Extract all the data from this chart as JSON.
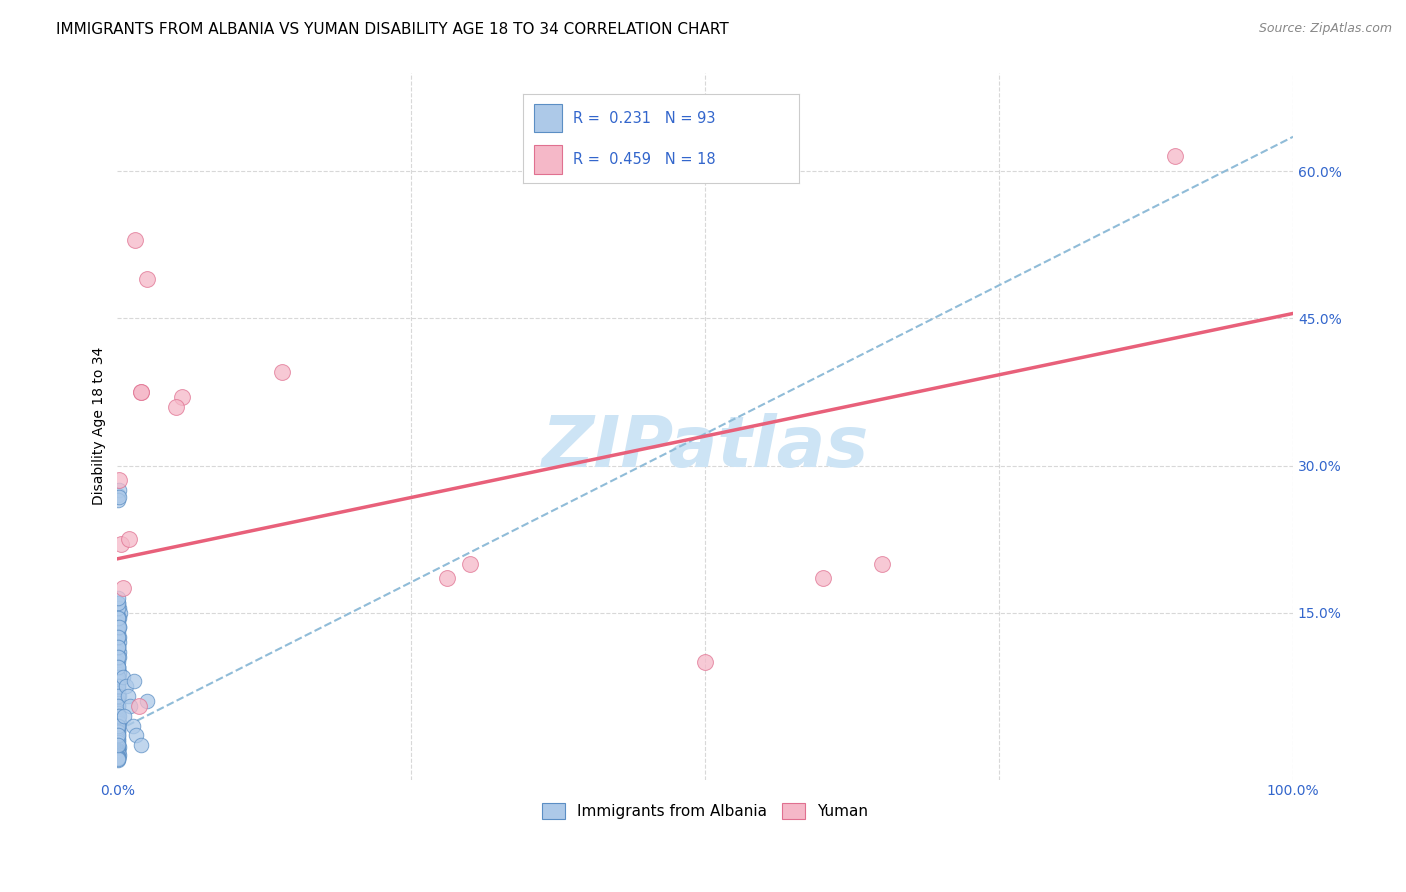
{
  "title": "IMMIGRANTS FROM ALBANIA VS YUMAN DISABILITY AGE 18 TO 34 CORRELATION CHART",
  "source": "Source: ZipAtlas.com",
  "ylabel": "Disability Age 18 to 34",
  "ytick_values": [
    0.15,
    0.3,
    0.45,
    0.6
  ],
  "xmin": 0.0,
  "xmax": 1.0,
  "ymin": -0.02,
  "ymax": 0.7,
  "watermark": "ZIPatlas",
  "blue_color": "#adc9e8",
  "blue_edge": "#5b8ec4",
  "pink_color": "#f5b8c8",
  "pink_edge": "#e07090",
  "trendline_blue_color": "#90bcd8",
  "trendline_pink_color": "#e8607a",
  "blue_scatter_x": [
    0.0008,
    0.0012,
    0.0006,
    0.0015,
    0.001,
    0.0008,
    0.002,
    0.0015,
    0.0007,
    0.001,
    0.0008,
    0.001,
    0.0012,
    0.0006,
    0.001,
    0.0007,
    0.0009,
    0.0006,
    0.0012,
    0.001,
    0.0007,
    0.0006,
    0.0009,
    0.0006,
    0.0009,
    0.0007,
    0.0012,
    0.0006,
    0.0009,
    0.0006,
    0.0006,
    0.0009,
    0.0006,
    0.0008,
    0.0006,
    0.0012,
    0.0006,
    0.0008,
    0.0006,
    0.0006,
    0.0008,
    0.0006,
    0.0006,
    0.0008,
    0.0006,
    0.0012,
    0.0009,
    0.0006,
    0.0006,
    0.0008,
    0.0006,
    0.0008,
    0.0012,
    0.0006,
    0.0006,
    0.0008,
    0.0006,
    0.0006,
    0.0008,
    0.0006,
    0.0006,
    0.0008,
    0.0006,
    0.0006,
    0.0012,
    0.0006,
    0.0008,
    0.0006,
    0.0006,
    0.0008,
    0.0015,
    0.0008,
    0.0006,
    0.0008,
    0.0005,
    0.0005,
    0.0007,
    0.0005,
    0.0012,
    0.0005,
    0.0008,
    0.0005,
    0.0005,
    0.005,
    0.007,
    0.009,
    0.011,
    0.006,
    0.013,
    0.016,
    0.02,
    0.014,
    0.025
  ],
  "blue_scatter_y": [
    0.27,
    0.275,
    0.265,
    0.268,
    0.155,
    0.16,
    0.15,
    0.145,
    0.14,
    0.135,
    0.13,
    0.125,
    0.12,
    0.115,
    0.11,
    0.105,
    0.1,
    0.095,
    0.09,
    0.088,
    0.085,
    0.082,
    0.08,
    0.075,
    0.072,
    0.068,
    0.065,
    0.06,
    0.058,
    0.055,
    0.05,
    0.048,
    0.045,
    0.042,
    0.04,
    0.038,
    0.035,
    0.032,
    0.03,
    0.028,
    0.025,
    0.022,
    0.02,
    0.018,
    0.015,
    0.013,
    0.012,
    0.01,
    0.009,
    0.008,
    0.007,
    0.006,
    0.005,
    0.004,
    0.003,
    0.002,
    0.001,
    0.0,
    0.002,
    0.001,
    0.145,
    0.135,
    0.125,
    0.115,
    0.105,
    0.095,
    0.085,
    0.075,
    0.065,
    0.055,
    0.045,
    0.035,
    0.025,
    0.015,
    0.155,
    0.16,
    0.165,
    0.145,
    0.135,
    0.125,
    0.115,
    0.105,
    0.095,
    0.085,
    0.075,
    0.065,
    0.055,
    0.045,
    0.035,
    0.025,
    0.015,
    0.08,
    0.06
  ],
  "pink_scatter_x": [
    0.001,
    0.003,
    0.015,
    0.025,
    0.9,
    0.02,
    0.02,
    0.055,
    0.05,
    0.6,
    0.65,
    0.28,
    0.3,
    0.14,
    0.5,
    0.01,
    0.005,
    0.018
  ],
  "pink_scatter_y": [
    0.285,
    0.22,
    0.53,
    0.49,
    0.615,
    0.375,
    0.375,
    0.37,
    0.36,
    0.185,
    0.2,
    0.185,
    0.2,
    0.395,
    0.1,
    0.225,
    0.175,
    0.055
  ],
  "blue_trend_x0": 0.0,
  "blue_trend_x1": 1.0,
  "blue_trend_y0": 0.03,
  "blue_trend_y1": 0.635,
  "pink_trend_x0": 0.0,
  "pink_trend_x1": 1.0,
  "pink_trend_y0": 0.205,
  "pink_trend_y1": 0.455,
  "grid_color": "#d8d8d8",
  "background_color": "#ffffff",
  "title_fontsize": 11,
  "axis_label_fontsize": 10,
  "tick_fontsize": 10,
  "legend_fontsize": 11,
  "watermark_fontsize": 52,
  "watermark_color": "#cde4f5",
  "legend_text_color": "#3366cc",
  "scatter_size": 110,
  "pink_scatter_size": 130
}
